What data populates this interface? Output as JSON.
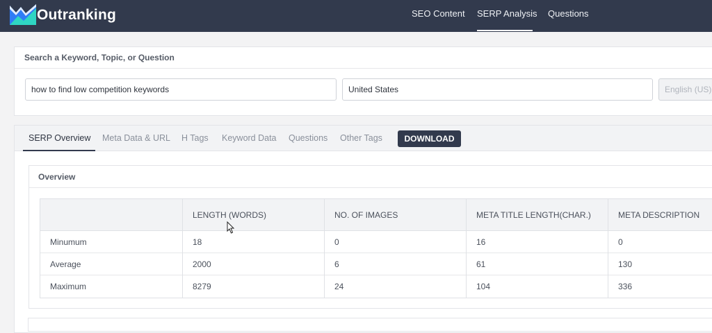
{
  "nav": {
    "brand": "Outranking",
    "links": [
      "SEO Content",
      "SERP Analysis",
      "Questions"
    ],
    "active_link": "SERP Analysis"
  },
  "search": {
    "heading": "Search a Keyword, Topic, or Question",
    "keyword_value": "how to find low competition keywords",
    "country_value": "United States",
    "language_value": "English (US)"
  },
  "tabs": {
    "items": [
      "SERP Overview",
      "Meta Data & URL",
      "H Tags",
      "Keyword Data",
      "Questions",
      "Other Tags"
    ],
    "active": "SERP Overview",
    "download_label": "DOWNLOAD"
  },
  "overview": {
    "title": "Overview",
    "columns": [
      "",
      "LENGTH (WORDS)",
      "NO. OF IMAGES",
      "META TITLE LENGTH(CHAR.)",
      "META DESCRIPTION"
    ],
    "rows": [
      [
        "Minumum",
        "18",
        "0",
        "16",
        "0"
      ],
      [
        "Average",
        "2000",
        "6",
        "61",
        "130"
      ],
      [
        "Maximum",
        "8279",
        "24",
        "104",
        "336"
      ]
    ]
  },
  "colors": {
    "nav_bg": "#323a4d",
    "logo_blue": "#2f7cf6",
    "logo_teal": "#2fd6c3",
    "button_bg": "#323a4d"
  },
  "icons": [
    "outranking-logo-icon",
    "mouse-cursor-icon"
  ]
}
